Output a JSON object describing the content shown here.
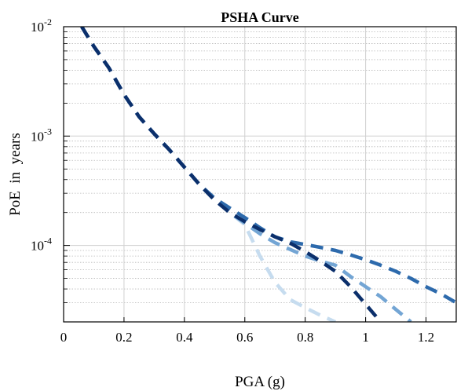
{
  "chart_data": {
    "type": "line",
    "title": "PSHA Curve",
    "xlabel": "PGA (g)",
    "ylabel": "PoE  in  years",
    "xlim": [
      0,
      1.3
    ],
    "ylim": [
      2e-05,
      0.01
    ],
    "yscale": "log",
    "grid": true,
    "minor_grid": true,
    "line_style": "dashed",
    "x_ticks": [
      0,
      0.2,
      0.4,
      0.6,
      0.8,
      1.0,
      1.2
    ],
    "x_tick_labels": [
      "0",
      "0.2",
      "0.4",
      "0.6",
      "0.8",
      "1",
      "1.2"
    ],
    "y_ticks": [
      {
        "value": 0.0001,
        "base": "10",
        "exp": "-4"
      },
      {
        "value": 0.001,
        "base": "10",
        "exp": "-3"
      },
      {
        "value": 0.01,
        "base": "10",
        "exp": "-2"
      }
    ],
    "series": [
      {
        "color": "#0b2f6b",
        "x": [
          0.06,
          0.1,
          0.15,
          0.2,
          0.25,
          0.3,
          0.35,
          0.4,
          0.45,
          0.5,
          0.55,
          0.6,
          0.65,
          0.7,
          0.75,
          0.8,
          0.85,
          0.9,
          0.95,
          1.0,
          1.05
        ],
        "y": [
          0.01,
          0.0066,
          0.0042,
          0.0024,
          0.0015,
          0.00105,
          0.00075,
          0.00052,
          0.00036,
          0.00026,
          0.0002,
          0.000165,
          0.00014,
          0.00012,
          0.000105,
          8.8e-05,
          7.2e-05,
          5.8e-05,
          4.2e-05,
          2.9e-05,
          2e-05
        ]
      },
      {
        "color": "#2d6aac",
        "x": [
          0.06,
          0.1,
          0.15,
          0.2,
          0.25,
          0.3,
          0.35,
          0.4,
          0.45,
          0.5,
          0.55,
          0.6,
          0.65,
          0.7,
          0.75,
          0.8,
          0.85,
          0.9,
          0.95,
          1.0,
          1.05,
          1.1,
          1.15,
          1.2,
          1.25,
          1.3
        ],
        "y": [
          0.01,
          0.0066,
          0.0042,
          0.0024,
          0.0015,
          0.00105,
          0.00075,
          0.00052,
          0.00036,
          0.00027,
          0.00022,
          0.00018,
          0.000145,
          0.00012,
          0.000108,
          0.000102,
          9.6e-05,
          9e-05,
          8.2e-05,
          7.4e-05,
          6.6e-05,
          5.8e-05,
          5e-05,
          4.2e-05,
          3.6e-05,
          3e-05
        ]
      },
      {
        "color": "#73a5d4",
        "x": [
          0.06,
          0.1,
          0.15,
          0.2,
          0.25,
          0.3,
          0.35,
          0.4,
          0.45,
          0.5,
          0.55,
          0.6,
          0.65,
          0.7,
          0.75,
          0.8,
          0.85,
          0.9,
          0.95,
          1.0,
          1.05,
          1.1,
          1.15
        ],
        "y": [
          0.01,
          0.0066,
          0.0042,
          0.0024,
          0.0015,
          0.00105,
          0.00075,
          0.00052,
          0.00036,
          0.00026,
          0.0002,
          0.00016,
          0.000128,
          0.000106,
          9.2e-05,
          8e-05,
          7.2e-05,
          6.6e-05,
          5.2e-05,
          4.2e-05,
          3.4e-05,
          2.6e-05,
          2e-05
        ]
      },
      {
        "color": "#c6dcef",
        "x": [
          0.06,
          0.1,
          0.15,
          0.2,
          0.25,
          0.3,
          0.35,
          0.4,
          0.45,
          0.5,
          0.55,
          0.6,
          0.65,
          0.7,
          0.75,
          0.8,
          0.85,
          0.9
        ],
        "y": [
          0.01,
          0.0066,
          0.0042,
          0.0024,
          0.0015,
          0.00105,
          0.00075,
          0.00052,
          0.00036,
          0.00026,
          0.0002,
          0.000155,
          8e-05,
          4.6e-05,
          3.2e-05,
          2.7e-05,
          2.3e-05,
          2e-05
        ]
      }
    ]
  }
}
